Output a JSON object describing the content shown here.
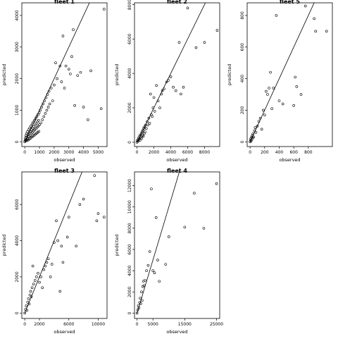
{
  "chart_data": [
    {
      "type": "scatter",
      "title": "fleet 1",
      "xlabel": "observed",
      "ylabel": "predicted",
      "xlim": [
        -200,
        5600
      ],
      "ylim": [
        -150,
        4400
      ],
      "xticks": [
        0,
        1000,
        2000,
        3000,
        4000,
        5000
      ],
      "yticks": [
        0,
        1000,
        2000,
        3000,
        4000
      ],
      "reference_line": "y = x",
      "grid": false,
      "points": [
        [
          0,
          0
        ],
        [
          20,
          50
        ],
        [
          40,
          120
        ],
        [
          60,
          30
        ],
        [
          80,
          200
        ],
        [
          100,
          80
        ],
        [
          120,
          260
        ],
        [
          140,
          150
        ],
        [
          160,
          40
        ],
        [
          180,
          320
        ],
        [
          200,
          100
        ],
        [
          220,
          220
        ],
        [
          240,
          60
        ],
        [
          260,
          380
        ],
        [
          280,
          170
        ],
        [
          300,
          280
        ],
        [
          320,
          90
        ],
        [
          340,
          440
        ],
        [
          360,
          210
        ],
        [
          380,
          330
        ],
        [
          400,
          120
        ],
        [
          420,
          500
        ],
        [
          440,
          260
        ],
        [
          460,
          380
        ],
        [
          480,
          150
        ],
        [
          500,
          560
        ],
        [
          520,
          300
        ],
        [
          540,
          430
        ],
        [
          560,
          180
        ],
        [
          580,
          620
        ],
        [
          600,
          340
        ],
        [
          620,
          480
        ],
        [
          640,
          210
        ],
        [
          660,
          680
        ],
        [
          680,
          380
        ],
        [
          700,
          530
        ],
        [
          720,
          240
        ],
        [
          740,
          740
        ],
        [
          760,
          420
        ],
        [
          780,
          580
        ],
        [
          800,
          270
        ],
        [
          820,
          800
        ],
        [
          840,
          460
        ],
        [
          860,
          630
        ],
        [
          880,
          300
        ],
        [
          900,
          860
        ],
        [
          920,
          500
        ],
        [
          940,
          680
        ],
        [
          960,
          330
        ],
        [
          980,
          920
        ],
        [
          1000,
          540
        ],
        [
          1050,
          1000
        ],
        [
          1100,
          600
        ],
        [
          1150,
          1100
        ],
        [
          1200,
          700
        ],
        [
          1250,
          1200
        ],
        [
          1300,
          800
        ],
        [
          1350,
          1300
        ],
        [
          1400,
          900
        ],
        [
          1450,
          1400
        ],
        [
          1500,
          1000
        ],
        [
          1550,
          1500
        ],
        [
          1600,
          1100
        ],
        [
          1650,
          1600
        ],
        [
          1700,
          1200
        ],
        [
          1800,
          1700
        ],
        [
          1900,
          1300
        ],
        [
          2000,
          1800
        ],
        [
          2100,
          2500
        ],
        [
          2200,
          2000
        ],
        [
          2400,
          2400
        ],
        [
          2500,
          1900
        ],
        [
          2600,
          3350
        ],
        [
          2700,
          1700
        ],
        [
          2800,
          2400
        ],
        [
          3000,
          2300
        ],
        [
          3100,
          2150
        ],
        [
          3200,
          2700
        ],
        [
          3300,
          3550
        ],
        [
          3400,
          1150
        ],
        [
          3600,
          2100
        ],
        [
          3800,
          2200
        ],
        [
          4000,
          1100
        ],
        [
          4300,
          700
        ],
        [
          4500,
          2250
        ],
        [
          5200,
          1050
        ],
        [
          5400,
          4200
        ]
      ]
    },
    {
      "type": "scatter",
      "title": "fleet 2",
      "xlabel": "observed",
      "ylabel": "predicted",
      "xlim": [
        -300,
        9800
      ],
      "ylim": [
        -250,
        8100
      ],
      "xticks": [
        0,
        2000,
        4000,
        6000,
        8000
      ],
      "yticks": [
        0,
        2000,
        4000,
        6000,
        8000
      ],
      "reference_line": "y = x",
      "grid": false,
      "points": [
        [
          0,
          0
        ],
        [
          50,
          80
        ],
        [
          100,
          150
        ],
        [
          150,
          60
        ],
        [
          200,
          250
        ],
        [
          250,
          180
        ],
        [
          300,
          350
        ],
        [
          350,
          120
        ],
        [
          400,
          420
        ],
        [
          450,
          300
        ],
        [
          500,
          500
        ],
        [
          550,
          220
        ],
        [
          600,
          600
        ],
        [
          650,
          400
        ],
        [
          700,
          700
        ],
        [
          750,
          350
        ],
        [
          800,
          820
        ],
        [
          850,
          500
        ],
        [
          900,
          900
        ],
        [
          950,
          600
        ],
        [
          1000,
          1000
        ],
        [
          1100,
          800
        ],
        [
          1200,
          1200
        ],
        [
          1300,
          1000
        ],
        [
          1400,
          1400
        ],
        [
          1500,
          1100
        ],
        [
          1600,
          2800
        ],
        [
          1700,
          1600
        ],
        [
          1800,
          1500
        ],
        [
          1900,
          2000
        ],
        [
          2000,
          2600
        ],
        [
          2100,
          1800
        ],
        [
          2300,
          3300
        ],
        [
          2500,
          2400
        ],
        [
          2700,
          2000
        ],
        [
          2900,
          2800
        ],
        [
          3000,
          3000
        ],
        [
          3200,
          3100
        ],
        [
          3500,
          3500
        ],
        [
          3700,
          3600
        ],
        [
          4000,
          3800
        ],
        [
          4300,
          3200
        ],
        [
          4600,
          3000
        ],
        [
          5000,
          5800
        ],
        [
          5200,
          2800
        ],
        [
          5500,
          3200
        ],
        [
          6000,
          7800
        ],
        [
          7000,
          5500
        ],
        [
          8000,
          5800
        ],
        [
          9500,
          6500
        ]
      ]
    },
    {
      "type": "scatter",
      "title": "fleet 5",
      "xlabel": "observed",
      "ylabel": "predicted",
      "xlim": [
        -40,
        1130
      ],
      "ylim": [
        -30,
        880
      ],
      "xticks": [
        0,
        200,
        400,
        600,
        800
      ],
      "yticks": [
        0,
        200,
        400,
        600,
        800
      ],
      "reference_line": "y = x",
      "grid": false,
      "points": [
        [
          0,
          0
        ],
        [
          5,
          10
        ],
        [
          10,
          20
        ],
        [
          15,
          5
        ],
        [
          20,
          30
        ],
        [
          25,
          15
        ],
        [
          30,
          40
        ],
        [
          35,
          25
        ],
        [
          40,
          50
        ],
        [
          50,
          30
        ],
        [
          60,
          70
        ],
        [
          70,
          90
        ],
        [
          80,
          60
        ],
        [
          100,
          100
        ],
        [
          120,
          130
        ],
        [
          140,
          150
        ],
        [
          160,
          80
        ],
        [
          180,
          200
        ],
        [
          200,
          170
        ],
        [
          220,
          320
        ],
        [
          240,
          300
        ],
        [
          260,
          340
        ],
        [
          280,
          440
        ],
        [
          300,
          210
        ],
        [
          320,
          340
        ],
        [
          360,
          800
        ],
        [
          400,
          260
        ],
        [
          450,
          240
        ],
        [
          600,
          230
        ],
        [
          620,
          410
        ],
        [
          640,
          350
        ],
        [
          700,
          300
        ],
        [
          760,
          860
        ],
        [
          880,
          780
        ],
        [
          900,
          700
        ],
        [
          1050,
          700
        ]
      ]
    },
    {
      "type": "scatter",
      "title": "fleet 3",
      "xlabel": "observed",
      "ylabel": "predicted",
      "xlim": [
        -400,
        11200
      ],
      "ylim": [
        -300,
        7800
      ],
      "xticks": [
        0,
        2000,
        6000,
        10000
      ],
      "yticks": [
        0,
        2000,
        4000,
        6000
      ],
      "reference_line": "y = x",
      "grid": false,
      "points": [
        [
          0,
          0
        ],
        [
          100,
          200
        ],
        [
          200,
          400
        ],
        [
          300,
          150
        ],
        [
          400,
          600
        ],
        [
          500,
          800
        ],
        [
          600,
          500
        ],
        [
          700,
          1000
        ],
        [
          800,
          1200
        ],
        [
          900,
          900
        ],
        [
          1000,
          1400
        ],
        [
          1100,
          2600
        ],
        [
          1200,
          1600
        ],
        [
          1400,
          1800
        ],
        [
          1600,
          2000
        ],
        [
          1800,
          2200
        ],
        [
          2000,
          1700
        ],
        [
          2200,
          2000
        ],
        [
          2400,
          1400
        ],
        [
          2600,
          2400
        ],
        [
          2800,
          2600
        ],
        [
          3000,
          2800
        ],
        [
          3200,
          3000
        ],
        [
          3500,
          2000
        ],
        [
          3700,
          2700
        ],
        [
          4000,
          3900
        ],
        [
          4300,
          5100
        ],
        [
          4500,
          4000
        ],
        [
          4800,
          1200
        ],
        [
          5000,
          3700
        ],
        [
          5200,
          2800
        ],
        [
          5800,
          4200
        ],
        [
          6000,
          5300
        ],
        [
          7000,
          3700
        ],
        [
          7500,
          6000
        ],
        [
          8000,
          6300
        ],
        [
          9500,
          7600
        ],
        [
          9800,
          5100
        ],
        [
          10000,
          5500
        ],
        [
          10800,
          5300
        ]
      ]
    },
    {
      "type": "scatter",
      "title": "fleet 4",
      "xlabel": "observed",
      "ylabel": "predicted",
      "xlim": [
        -800,
        26000
      ],
      "ylim": [
        -500,
        13300
      ],
      "xticks": [
        0,
        5000,
        15000,
        25000
      ],
      "yticks": [
        0,
        2000,
        4000,
        6000,
        8000,
        10000,
        12000
      ],
      "reference_line": "y = x",
      "grid": false,
      "points": [
        [
          0,
          0
        ],
        [
          200,
          300
        ],
        [
          400,
          700
        ],
        [
          600,
          500
        ],
        [
          800,
          1000
        ],
        [
          1000,
          1400
        ],
        [
          1200,
          900
        ],
        [
          1400,
          2000
        ],
        [
          1600,
          1200
        ],
        [
          1800,
          2500
        ],
        [
          2000,
          3000
        ],
        [
          2200,
          2600
        ],
        [
          2500,
          3100
        ],
        [
          3000,
          4000
        ],
        [
          3500,
          4500
        ],
        [
          4000,
          5800
        ],
        [
          4500,
          11700
        ],
        [
          5000,
          4000
        ],
        [
          5500,
          3800
        ],
        [
          6000,
          9000
        ],
        [
          6500,
          5000
        ],
        [
          7000,
          3000
        ],
        [
          9000,
          4600
        ],
        [
          10000,
          7200
        ],
        [
          15000,
          8100
        ],
        [
          18000,
          11300
        ],
        [
          21000,
          8000
        ],
        [
          25000,
          12200
        ]
      ]
    }
  ]
}
